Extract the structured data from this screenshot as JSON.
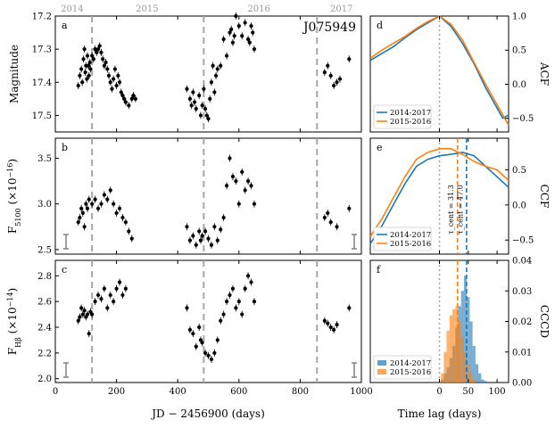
{
  "object_name": "J075949",
  "colors": {
    "series_2014_2017": "#1f77b4",
    "series_2015_2016": "#ff7f0e",
    "points": "#000000",
    "guide": "#a6a6a6"
  },
  "chart_data": [
    {
      "type": "scatter",
      "panel": "a",
      "xlabel": "JD − 2456900 (days)",
      "ylabel": "Magnitude",
      "xlim": [
        0,
        1000
      ],
      "ylim": [
        17.55,
        17.2
      ],
      "year_labels": [
        {
          "label": "2014",
          "x": 55
        },
        {
          "label": "2015",
          "x": 300
        },
        {
          "label": "2016",
          "x": 665
        },
        {
          "label": "2017",
          "x": 935
        }
      ],
      "vlines": [
        120,
        485,
        855
      ],
      "xticks": [
        0,
        200,
        400,
        600,
        800,
        1000
      ],
      "yticks": [
        17.2,
        17.3,
        17.4,
        17.5
      ],
      "ytick_labels": [
        "17.2",
        "17.3",
        "17.4",
        "17.5"
      ],
      "x": [
        75,
        80,
        85,
        88,
        92,
        95,
        98,
        100,
        103,
        105,
        108,
        110,
        113,
        115,
        120,
        125,
        130,
        135,
        140,
        145,
        150,
        155,
        160,
        165,
        170,
        175,
        180,
        185,
        190,
        195,
        200,
        205,
        210,
        215,
        220,
        225,
        230,
        240,
        250,
        255,
        262,
        430,
        440,
        445,
        450,
        455,
        460,
        470,
        475,
        480,
        485,
        490,
        495,
        500,
        505,
        510,
        515,
        520,
        525,
        530,
        540,
        550,
        560,
        570,
        575,
        580,
        585,
        590,
        600,
        610,
        620,
        630,
        635,
        640,
        645,
        650,
        880,
        890,
        900,
        910,
        920,
        930,
        960
      ],
      "values": [
        17.41,
        17.38,
        17.36,
        17.4,
        17.33,
        17.3,
        17.37,
        17.35,
        17.39,
        17.32,
        17.35,
        17.38,
        17.34,
        17.36,
        17.32,
        17.33,
        17.3,
        17.31,
        17.3,
        17.29,
        17.31,
        17.33,
        17.35,
        17.34,
        17.36,
        17.38,
        17.4,
        17.42,
        17.39,
        17.36,
        17.41,
        17.38,
        17.4,
        17.43,
        17.44,
        17.45,
        17.46,
        17.47,
        17.45,
        17.44,
        17.45,
        17.42,
        17.45,
        17.47,
        17.43,
        17.46,
        17.48,
        17.44,
        17.5,
        17.47,
        17.42,
        17.48,
        17.5,
        17.51,
        17.45,
        17.4,
        17.35,
        17.43,
        17.38,
        17.36,
        17.35,
        17.27,
        17.32,
        17.25,
        17.24,
        17.28,
        17.26,
        17.2,
        17.23,
        17.26,
        17.22,
        17.27,
        17.28,
        17.23,
        17.25,
        17.3,
        17.37,
        17.35,
        17.38,
        17.41,
        17.4,
        17.39,
        17.33
      ]
    },
    {
      "type": "line",
      "panel": "d",
      "xlabel": "Time lag (days)",
      "ylabel": "ACF",
      "xlim": [
        -120,
        120
      ],
      "ylim": [
        -0.7,
        1.0
      ],
      "yticks": [
        -0.5,
        0.0,
        0.5,
        1.0
      ],
      "ytick_labels": [
        "−0.5",
        "0.0",
        "0.5",
        "1.0"
      ],
      "vline": 0,
      "legend": "lower left",
      "series": [
        {
          "name": "2014-2017",
          "x": [
            -120,
            -100,
            -80,
            -60,
            -40,
            -20,
            0,
            20,
            40,
            60,
            80,
            100,
            110,
            120
          ],
          "values": [
            0.35,
            0.45,
            0.55,
            0.68,
            0.8,
            0.9,
            1.0,
            0.85,
            0.6,
            0.3,
            -0.05,
            -0.35,
            -0.5,
            -0.45
          ]
        },
        {
          "name": "2015-2016",
          "x": [
            -120,
            -100,
            -80,
            -60,
            -40,
            -20,
            0,
            20,
            40,
            60,
            80,
            100,
            110,
            120
          ],
          "values": [
            0.38,
            0.5,
            0.6,
            0.7,
            0.82,
            0.92,
            1.0,
            0.88,
            0.65,
            0.32,
            0.0,
            -0.3,
            -0.45,
            -0.6
          ]
        }
      ]
    },
    {
      "type": "scatter",
      "panel": "b",
      "ylabel": "F5100 (×10^-16)",
      "xlim": [
        0,
        1000
      ],
      "ylim": [
        2.45,
        3.72
      ],
      "yticks": [
        2.5,
        3.0,
        3.5
      ],
      "ytick_labels": [
        "2.5",
        "3.0",
        "3.5"
      ],
      "vlines": [
        120,
        485,
        855
      ],
      "x": [
        75,
        80,
        85,
        90,
        95,
        100,
        105,
        110,
        120,
        130,
        140,
        150,
        160,
        170,
        180,
        190,
        200,
        210,
        220,
        230,
        240,
        250,
        430,
        440,
        450,
        460,
        470,
        475,
        480,
        490,
        500,
        510,
        520,
        530,
        540,
        550,
        560,
        570,
        580,
        590,
        600,
        610,
        620,
        630,
        640,
        650,
        880,
        890,
        900,
        920,
        960
      ],
      "values": [
        2.8,
        2.85,
        2.95,
        2.9,
        2.75,
        3.0,
        2.95,
        3.05,
        3.0,
        3.05,
        2.95,
        3.0,
        3.1,
        3.05,
        3.15,
        3.0,
        2.9,
        2.95,
        2.85,
        2.8,
        2.7,
        2.62,
        2.75,
        2.6,
        2.65,
        2.55,
        2.7,
        2.6,
        2.65,
        2.7,
        2.62,
        2.55,
        2.75,
        2.6,
        2.72,
        2.85,
        3.2,
        3.5,
        3.3,
        3.25,
        3.0,
        3.35,
        3.15,
        3.25,
        3.2,
        3.0,
        2.85,
        2.9,
        2.8,
        2.75,
        2.95
      ]
    },
    {
      "type": "line",
      "panel": "e",
      "ylabel": "CCF",
      "xlim": [
        -120,
        120
      ],
      "ylim": [
        -0.7,
        0.95
      ],
      "yticks": [
        -0.5,
        0.0,
        0.5
      ],
      "ytick_labels": [
        "−0.5",
        "0.0",
        "0.5"
      ],
      "vlines": [
        {
          "x": 0,
          "style": "dotted"
        },
        {
          "x": 31.3,
          "series": "2015-2016"
        },
        {
          "x": 47.0,
          "series": "2014-2017"
        }
      ],
      "annotations": [
        "τ_cent = 31.3",
        "τ_cent = 47.0"
      ],
      "legend": "lower left",
      "series": [
        {
          "name": "2014-2017",
          "x": [
            -120,
            -100,
            -80,
            -60,
            -40,
            -20,
            0,
            20,
            40,
            60,
            80,
            100,
            120
          ],
          "values": [
            -0.55,
            -0.3,
            0.0,
            0.3,
            0.55,
            0.65,
            0.7,
            0.72,
            0.75,
            0.7,
            0.55,
            0.4,
            0.25
          ]
        },
        {
          "name": "2015-2016",
          "x": [
            -120,
            -100,
            -80,
            -60,
            -40,
            -20,
            0,
            20,
            40,
            60,
            80,
            100,
            120
          ],
          "values": [
            -0.45,
            -0.2,
            0.1,
            0.4,
            0.65,
            0.75,
            0.8,
            0.8,
            0.72,
            0.62,
            0.55,
            0.5,
            0.35
          ]
        }
      ]
    },
    {
      "type": "scatter",
      "panel": "c",
      "ylabel": "F_Hβ (×10^-14)",
      "xlim": [
        0,
        1000
      ],
      "ylim": [
        1.97,
        2.92
      ],
      "yticks": [
        2.0,
        2.2,
        2.4,
        2.6,
        2.8
      ],
      "ytick_labels": [
        "2.0",
        "2.2",
        "2.4",
        "2.6",
        "2.8"
      ],
      "vlines": [
        120,
        485,
        855
      ],
      "x": [
        75,
        80,
        85,
        90,
        95,
        100,
        105,
        110,
        115,
        120,
        130,
        140,
        150,
        160,
        170,
        180,
        190,
        200,
        210,
        220,
        230,
        430,
        440,
        450,
        460,
        470,
        475,
        480,
        490,
        500,
        510,
        520,
        530,
        540,
        550,
        560,
        570,
        580,
        590,
        600,
        610,
        620,
        630,
        640,
        650,
        880,
        890,
        900,
        910,
        920,
        960
      ],
      "values": [
        2.45,
        2.48,
        2.55,
        2.5,
        2.53,
        2.48,
        2.5,
        2.35,
        2.52,
        2.5,
        2.6,
        2.65,
        2.62,
        2.7,
        2.55,
        2.65,
        2.6,
        2.7,
        2.75,
        2.65,
        2.7,
        2.55,
        2.38,
        2.35,
        2.25,
        2.4,
        2.3,
        2.28,
        2.2,
        2.18,
        2.15,
        2.2,
        2.3,
        2.45,
        2.5,
        2.6,
        2.65,
        2.7,
        2.55,
        2.6,
        2.5,
        2.7,
        2.8,
        2.75,
        2.6,
        2.45,
        2.43,
        2.4,
        2.38,
        2.42,
        2.55
      ]
    },
    {
      "type": "bar",
      "panel": "f",
      "xlabel": "Time lag (days)",
      "ylabel": "CCCD",
      "xlim": [
        -120,
        120
      ],
      "ylim": [
        0,
        0.04
      ],
      "yticks": [
        0.0,
        0.01,
        0.02,
        0.03,
        0.04
      ],
      "ytick_labels": [
        "0.00",
        "0.01",
        "0.02",
        "0.03",
        "0.04"
      ],
      "xticks": [
        0,
        50,
        100
      ],
      "legend": "lower left",
      "series": [
        {
          "name": "2014-2017",
          "x": [
            5,
            10,
            15,
            20,
            25,
            30,
            35,
            40,
            45,
            50,
            55,
            60,
            65,
            70,
            75,
            80
          ],
          "values": [
            0.001,
            0.003,
            0.005,
            0.008,
            0.012,
            0.018,
            0.025,
            0.03,
            0.035,
            0.028,
            0.02,
            0.012,
            0.006,
            0.003,
            0.001,
            0.0005
          ]
        },
        {
          "name": "2015-2016",
          "x": [
            5,
            10,
            15,
            20,
            25,
            30,
            35,
            40,
            45,
            50,
            55,
            60
          ],
          "values": [
            0.003,
            0.01,
            0.017,
            0.022,
            0.024,
            0.025,
            0.02,
            0.015,
            0.01,
            0.006,
            0.003,
            0.001
          ]
        }
      ]
    }
  ]
}
